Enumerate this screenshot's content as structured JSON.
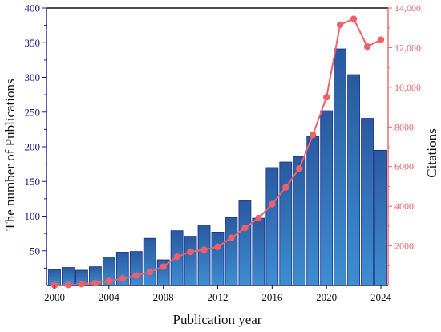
{
  "chart_data": {
    "type": "bar+line",
    "xlabel": "Publication year",
    "ylabel_left": "The number of Publications",
    "ylabel_right": "Citations",
    "years": [
      2000,
      2001,
      2002,
      2003,
      2004,
      2005,
      2006,
      2007,
      2008,
      2009,
      2010,
      2011,
      2012,
      2013,
      2014,
      2015,
      2016,
      2017,
      2018,
      2019,
      2020,
      2021,
      2022,
      2023,
      2024
    ],
    "x_ticks": [
      "2000",
      "2004",
      "2008",
      "2012",
      "2016",
      "2020",
      "2024"
    ],
    "y_left_ticks": [
      "50",
      "100",
      "150",
      "200",
      "250",
      "300",
      "350",
      "400"
    ],
    "y_right_ticks": [
      "2000",
      "4000",
      "6000",
      "8000",
      "10,000",
      "12,000",
      "14,000"
    ],
    "ylim_left": [
      0,
      400
    ],
    "ylim_right": [
      0,
      14000
    ],
    "series": [
      {
        "name": "Publications",
        "axis": "left",
        "kind": "bar",
        "values": [
          23,
          26,
          22,
          27,
          41,
          48,
          49,
          68,
          37,
          79,
          71,
          87,
          77,
          98,
          122,
          97,
          170,
          178,
          186,
          215,
          252,
          341,
          304,
          241,
          195
        ]
      },
      {
        "name": "Citations",
        "axis": "right",
        "kind": "line",
        "values": [
          10,
          30,
          70,
          120,
          230,
          350,
          500,
          680,
          950,
          1450,
          1700,
          1800,
          1950,
          2400,
          2900,
          3400,
          4100,
          4950,
          5900,
          7600,
          9500,
          13150,
          13450,
          12050,
          12400
        ]
      }
    ],
    "colors": {
      "bar_top": "#2a5aa0",
      "bar_bottom": "#3e8ed2",
      "bar_edge": "#1a2d8c",
      "line": "#f0606a",
      "left_axis": "#1a1a8c",
      "right_axis": "#f0606a"
    }
  }
}
